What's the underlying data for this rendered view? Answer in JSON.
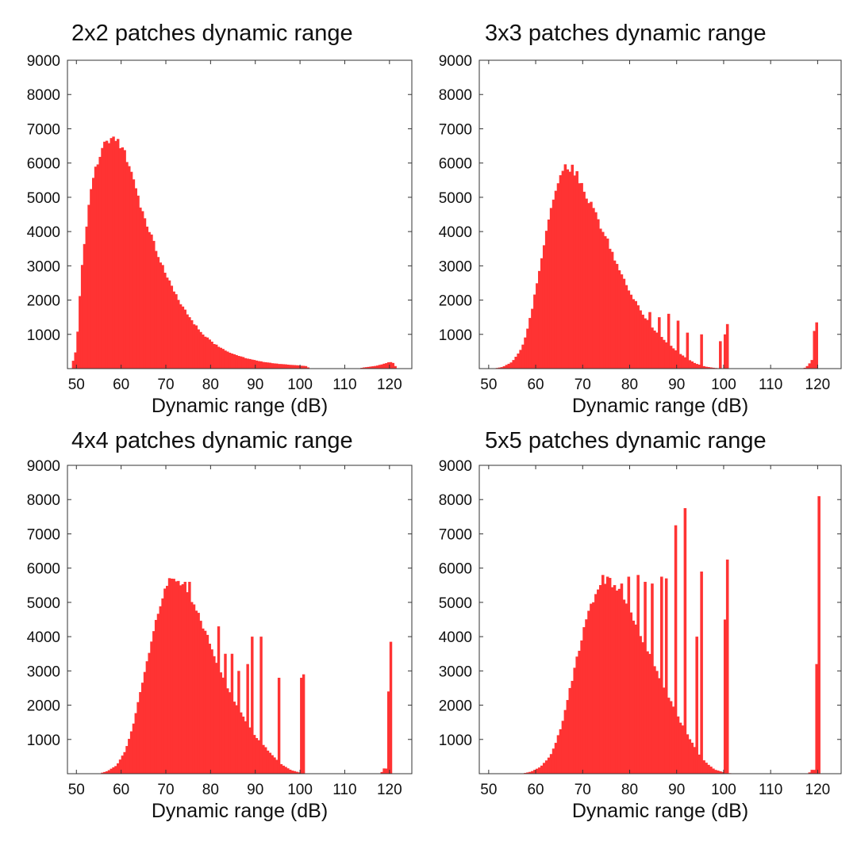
{
  "figure": {
    "background": "#ffffff",
    "bar_color": "#ff3333",
    "axis_color": "#333333"
  },
  "chart_data": [
    {
      "type": "bar",
      "title": "2x2 patches dynamic range",
      "xlabel": "Dynamic range (dB)",
      "ylabel": "",
      "xlim": [
        48,
        125
      ],
      "ylim": [
        0,
        9000
      ],
      "xticks": [
        50,
        60,
        70,
        80,
        90,
        100,
        110,
        120
      ],
      "yticks": [
        1000,
        2000,
        3000,
        4000,
        5000,
        6000,
        7000,
        8000,
        9000
      ],
      "bin_width": 0.5,
      "smooth": [
        [
          49,
          100
        ],
        [
          50,
          600
        ],
        [
          50.5,
          1600
        ],
        [
          51,
          2700
        ],
        [
          52,
          3900
        ],
        [
          53,
          5000
        ],
        [
          54,
          5700
        ],
        [
          55,
          6150
        ],
        [
          56,
          6450
        ],
        [
          57,
          6620
        ],
        [
          58,
          6700
        ],
        [
          59,
          6650
        ],
        [
          60,
          6500
        ],
        [
          61,
          6200
        ],
        [
          62,
          5800
        ],
        [
          63,
          5300
        ],
        [
          64,
          4900
        ],
        [
          65,
          4450
        ],
        [
          66,
          4100
        ],
        [
          67,
          3750
        ],
        [
          68,
          3400
        ],
        [
          69,
          3050
        ],
        [
          70,
          2750
        ],
        [
          71,
          2450
        ],
        [
          72,
          2200
        ],
        [
          73,
          1950
        ],
        [
          74,
          1750
        ],
        [
          75,
          1550
        ],
        [
          76,
          1350
        ],
        [
          77,
          1200
        ],
        [
          78,
          1050
        ],
        [
          79,
          920
        ],
        [
          80,
          800
        ],
        [
          82,
          620
        ],
        [
          84,
          480
        ],
        [
          86,
          380
        ],
        [
          88,
          300
        ],
        [
          90,
          240
        ],
        [
          92,
          190
        ],
        [
          95,
          140
        ],
        [
          98,
          110
        ],
        [
          100,
          90
        ],
        [
          101.5,
          70
        ],
        [
          102,
          0
        ],
        [
          113,
          0
        ],
        [
          114,
          30
        ],
        [
          117,
          80
        ],
        [
          119,
          150
        ],
        [
          120,
          200
        ],
        [
          121,
          150
        ],
        [
          121.5,
          0
        ]
      ],
      "spikes": []
    },
    {
      "type": "bar",
      "title": "3x3 patches dynamic range",
      "xlabel": "Dynamic range (dB)",
      "ylabel": "",
      "xlim": [
        48,
        125
      ],
      "ylim": [
        0,
        9000
      ],
      "xticks": [
        50,
        60,
        70,
        80,
        90,
        100,
        110,
        120
      ],
      "yticks": [
        1000,
        2000,
        3000,
        4000,
        5000,
        6000,
        7000,
        8000,
        9000
      ],
      "bin_width": 0.5,
      "smooth": [
        [
          51,
          0
        ],
        [
          53,
          50
        ],
        [
          55,
          200
        ],
        [
          57,
          600
        ],
        [
          58,
          1000
        ],
        [
          59,
          1600
        ],
        [
          60,
          2300
        ],
        [
          61,
          3000
        ],
        [
          62,
          3800
        ],
        [
          63,
          4500
        ],
        [
          64,
          5100
        ],
        [
          65,
          5600
        ],
        [
          66,
          5850
        ],
        [
          67,
          5900
        ],
        [
          68,
          5800
        ],
        [
          69,
          5600
        ],
        [
          70,
          5300
        ],
        [
          71,
          5000
        ],
        [
          72,
          4700
        ],
        [
          73,
          4400
        ],
        [
          74,
          4100
        ],
        [
          75,
          3800
        ],
        [
          76,
          3450
        ],
        [
          77,
          3150
        ],
        [
          78,
          2850
        ],
        [
          79,
          2550
        ],
        [
          80,
          2250
        ],
        [
          81,
          2000
        ],
        [
          82,
          1750
        ],
        [
          84,
          1350
        ],
        [
          86,
          1000
        ],
        [
          88,
          750
        ],
        [
          90,
          500
        ],
        [
          92,
          300
        ],
        [
          94,
          150
        ],
        [
          96,
          60
        ],
        [
          98,
          20
        ],
        [
          100,
          0
        ],
        [
          117,
          0
        ],
        [
          118,
          100
        ],
        [
          119,
          300
        ],
        [
          120,
          0
        ]
      ],
      "spikes": [
        [
          80,
          1900
        ],
        [
          82,
          1700
        ],
        [
          84,
          1650
        ],
        [
          86,
          1500
        ],
        [
          88,
          1600
        ],
        [
          90,
          1400
        ],
        [
          92,
          1050
        ],
        [
          95,
          1000
        ],
        [
          99,
          800
        ],
        [
          100,
          1000
        ],
        [
          100.5,
          1300
        ],
        [
          119,
          1100
        ],
        [
          119.5,
          1350
        ]
      ]
    },
    {
      "type": "bar",
      "title": "4x4 patches dynamic range",
      "xlabel": "Dynamic range (dB)",
      "ylabel": "",
      "xlim": [
        48,
        125
      ],
      "ylim": [
        0,
        9000
      ],
      "xticks": [
        50,
        60,
        70,
        80,
        90,
        100,
        110,
        120
      ],
      "yticks": [
        1000,
        2000,
        3000,
        4000,
        5000,
        6000,
        7000,
        8000,
        9000
      ],
      "bin_width": 0.5,
      "smooth": [
        [
          55,
          0
        ],
        [
          57,
          80
        ],
        [
          59,
          250
        ],
        [
          61,
          700
        ],
        [
          62,
          1100
        ],
        [
          63,
          1600
        ],
        [
          64,
          2200
        ],
        [
          65,
          2800
        ],
        [
          66,
          3400
        ],
        [
          67,
          4000
        ],
        [
          68,
          4600
        ],
        [
          69,
          5100
        ],
        [
          70,
          5450
        ],
        [
          71,
          5650
        ],
        [
          72,
          5700
        ],
        [
          73,
          5650
        ],
        [
          74,
          5500
        ],
        [
          75,
          5300
        ],
        [
          76,
          5050
        ],
        [
          77,
          4750
        ],
        [
          78,
          4400
        ],
        [
          79,
          4050
        ],
        [
          80,
          3700
        ],
        [
          81,
          3350
        ],
        [
          82,
          3000
        ],
        [
          84,
          2450
        ],
        [
          86,
          1950
        ],
        [
          88,
          1500
        ],
        [
          90,
          1100
        ],
        [
          92,
          800
        ],
        [
          94,
          500
        ],
        [
          96,
          250
        ],
        [
          98,
          100
        ],
        [
          100,
          30
        ],
        [
          102,
          0
        ],
        [
          118,
          0
        ],
        [
          119,
          200
        ],
        [
          120,
          0
        ]
      ],
      "spikes": [
        [
          72.5,
          5600
        ],
        [
          74,
          5600
        ],
        [
          75,
          5600
        ],
        [
          81.5,
          4300
        ],
        [
          83,
          3500
        ],
        [
          84.5,
          3500
        ],
        [
          86,
          3000
        ],
        [
          88,
          3200
        ],
        [
          89,
          4000
        ],
        [
          91,
          4000
        ],
        [
          95,
          2800
        ],
        [
          100,
          2800
        ],
        [
          100.5,
          2900
        ],
        [
          119.5,
          2400
        ],
        [
          120,
          3850
        ]
      ]
    },
    {
      "type": "bar",
      "title": "5x5 patches dynamic range",
      "xlabel": "Dynamic range (dB)",
      "ylabel": "",
      "xlim": [
        48,
        125
      ],
      "ylim": [
        0,
        9000
      ],
      "xticks": [
        50,
        60,
        70,
        80,
        90,
        100,
        110,
        120
      ],
      "yticks": [
        1000,
        2000,
        3000,
        4000,
        5000,
        6000,
        7000,
        8000,
        9000
      ],
      "bin_width": 0.5,
      "smooth": [
        [
          57,
          0
        ],
        [
          59,
          60
        ],
        [
          61,
          200
        ],
        [
          63,
          500
        ],
        [
          64,
          800
        ],
        [
          65,
          1200
        ],
        [
          66,
          1700
        ],
        [
          67,
          2300
        ],
        [
          68,
          2900
        ],
        [
          69,
          3500
        ],
        [
          70,
          4100
        ],
        [
          71,
          4600
        ],
        [
          72,
          5000
        ],
        [
          73,
          5300
        ],
        [
          74,
          5550
        ],
        [
          75,
          5650
        ],
        [
          76,
          5600
        ],
        [
          77,
          5450
        ],
        [
          78,
          5250
        ],
        [
          79,
          5000
        ],
        [
          80,
          4700
        ],
        [
          81,
          4400
        ],
        [
          82,
          4100
        ],
        [
          84,
          3500
        ],
        [
          86,
          2900
        ],
        [
          88,
          2300
        ],
        [
          90,
          1700
        ],
        [
          92,
          1200
        ],
        [
          94,
          700
        ],
        [
          96,
          350
        ],
        [
          98,
          120
        ],
        [
          100,
          40
        ],
        [
          102,
          0
        ],
        [
          118,
          0
        ],
        [
          119,
          150
        ],
        [
          120,
          0
        ]
      ],
      "spikes": [
        [
          74,
          5800
        ],
        [
          75,
          5750
        ],
        [
          78,
          5550
        ],
        [
          79.5,
          5750
        ],
        [
          81.5,
          5800
        ],
        [
          83,
          5600
        ],
        [
          84.5,
          5550
        ],
        [
          86.5,
          5750
        ],
        [
          87.5,
          5700
        ],
        [
          89.5,
          7250
        ],
        [
          91.5,
          7750
        ],
        [
          94,
          4000
        ],
        [
          95,
          5900
        ],
        [
          100,
          4500
        ],
        [
          100.5,
          6250
        ],
        [
          119.5,
          3200
        ],
        [
          120,
          8100
        ]
      ]
    }
  ]
}
